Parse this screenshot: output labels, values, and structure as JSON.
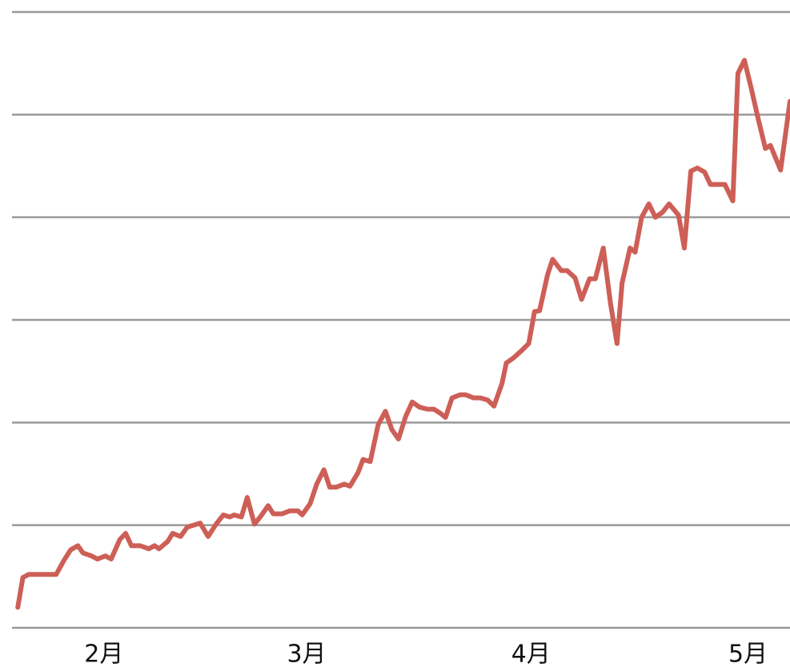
{
  "chart_data": {
    "type": "line",
    "x": [
      -11.9,
      -11.2,
      -10.4,
      -8.8,
      -6.6,
      -5.5,
      -4.6,
      -3.6,
      -2.9,
      -1.7,
      -0.9,
      0.2,
      1.0,
      2.2,
      3.0,
      3.8,
      5.0,
      6.2,
      7.0,
      7.6,
      8.8,
      9.5,
      10.6,
      11.5,
      12.4,
      13.3,
      14.4,
      15.5,
      16.5,
      17.4,
      18.0,
      19.0,
      19.8,
      20.8,
      21.7,
      22.7,
      23.4,
      24.6,
      25.7,
      26.8,
      27.4,
      28.5,
      29.4,
      30.4,
      31.2,
      32.1,
      33.2,
      34.0,
      35.1,
      35.8,
      36.8,
      37.9,
      38.9,
      39.8,
      40.7,
      41.7,
      42.6,
      43.6,
      44.7,
      45.6,
      46.5,
      47.2,
      48.1,
      49.2,
      50.0,
      51.1,
      52.0,
      53.0,
      53.9,
      55.0,
      55.6,
      56.6,
      57.7,
      58.7,
      59.5,
      60.2,
      61.3,
      62.0,
      63.2,
      64.0,
      65.1,
      66.0,
      67.1,
      67.9,
      69.0,
      70.0,
      70.9,
      71.6,
      72.7,
      73.4,
      74.3,
      75.3,
      76.2,
      77.2,
      78.1,
      79.4,
      80.2,
      81.1,
      82.0,
      83.0,
      83.8,
      85.8,
      86.9,
      87.6,
      88.5,
      89.4,
      90.4,
      91.4,
      92.1,
      93.5,
      94.8
    ],
    "series": [
      {
        "color": "#cd5f57",
        "values": [
          0.2,
          0.49,
          0.52,
          0.52,
          0.52,
          0.66,
          0.76,
          0.8,
          0.73,
          0.7,
          0.67,
          0.7,
          0.67,
          0.86,
          0.92,
          0.8,
          0.8,
          0.77,
          0.8,
          0.77,
          0.84,
          0.92,
          0.89,
          0.98,
          1.0,
          1.02,
          0.89,
          1.01,
          1.1,
          1.08,
          1.1,
          1.08,
          1.27,
          1.01,
          1.09,
          1.19,
          1.11,
          1.11,
          1.14,
          1.14,
          1.1,
          1.21,
          1.4,
          1.54,
          1.37,
          1.37,
          1.4,
          1.38,
          1.51,
          1.64,
          1.62,
          1.98,
          2.11,
          1.93,
          1.84,
          2.06,
          2.2,
          2.15,
          2.13,
          2.13,
          2.09,
          2.05,
          2.24,
          2.27,
          2.27,
          2.24,
          2.24,
          2.22,
          2.16,
          2.38,
          2.58,
          2.63,
          2.7,
          2.77,
          3.08,
          3.09,
          3.44,
          3.59,
          3.48,
          3.48,
          3.41,
          3.2,
          3.4,
          3.4,
          3.7,
          3.16,
          2.77,
          3.36,
          3.7,
          3.66,
          4.0,
          4.13,
          4.0,
          4.05,
          4.13,
          4.02,
          3.7,
          4.45,
          4.48,
          4.44,
          4.32,
          4.32,
          4.16,
          5.4,
          5.53,
          5.27,
          4.96,
          4.67,
          4.7,
          4.46,
          5.13
        ]
      }
    ],
    "xlim": [
      -12.7,
      94.8
    ],
    "xticks": [
      {
        "value": 0,
        "label": "2月"
      },
      {
        "value": 28,
        "label": "3月"
      },
      {
        "value": 59,
        "label": "4月"
      },
      {
        "value": 89,
        "label": "5月"
      }
    ],
    "ylim": [
      0,
      6
    ],
    "yticks": [
      0,
      1,
      2,
      3,
      4,
      5,
      6
    ],
    "grid": true
  }
}
